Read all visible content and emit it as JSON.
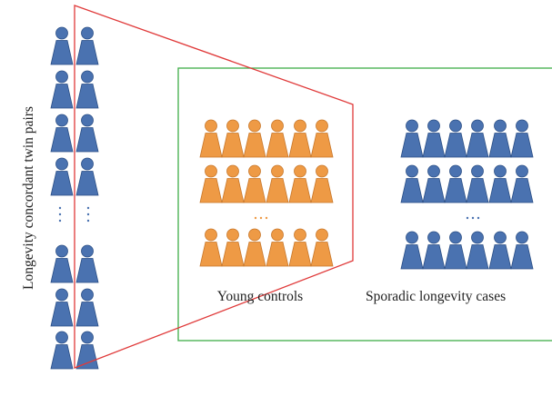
{
  "labels": {
    "side": "Longevity concordant twin pairs",
    "young": "Young controls",
    "sporadic": "Sporadic longevity cases"
  },
  "colors": {
    "blue_person": "#4a72b0",
    "blue_outline": "#2b4f86",
    "orange_person": "#ee9a45",
    "orange_outline": "#c8772a",
    "trapezoid": "#e03a3a",
    "green_box": "#3fae49",
    "ellipsis_blue": "#4a72b0",
    "ellipsis_orange": "#ee9a45"
  },
  "icons": {
    "person": "person-icon"
  }
}
